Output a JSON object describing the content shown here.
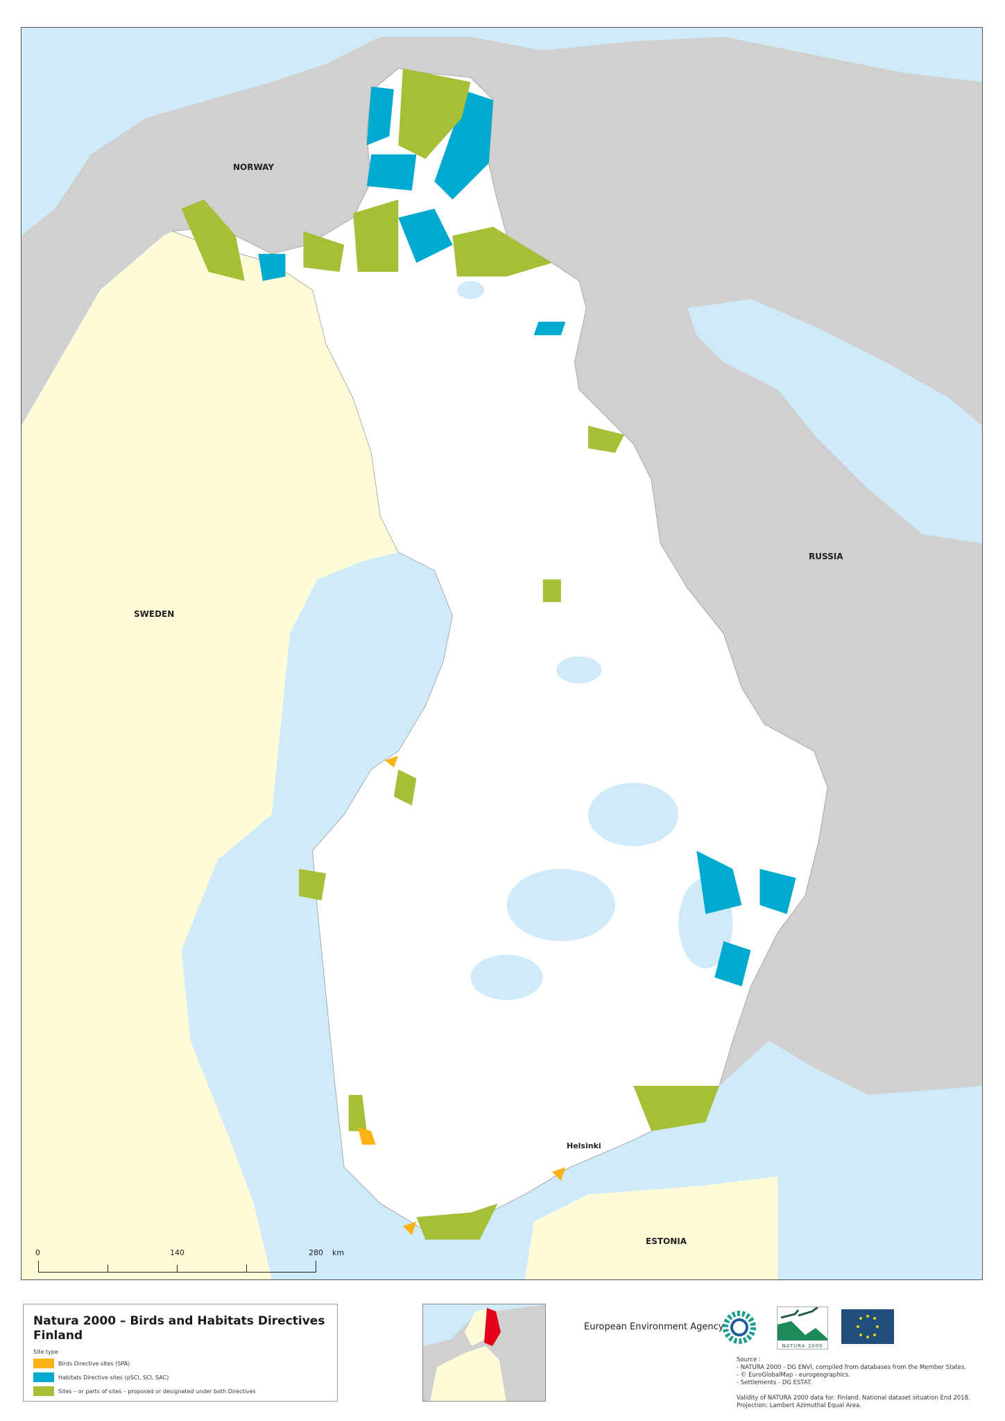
{
  "map": {
    "countries": {
      "norway": "NORWAY",
      "russia": "RUSSIA",
      "sweden": "SWEDEN",
      "estonia": "ESTONIA"
    },
    "cities": {
      "helsinki": "Helsinki"
    },
    "scale_bar": {
      "ticks": [
        "0",
        "140",
        "280"
      ],
      "unit": "km"
    },
    "colors": {
      "sea": "#cfeaf8",
      "other_land": "#d0d0d0",
      "neighbour_land": "#fefbd8",
      "finland": "#ffffff",
      "spa": "#fbb216",
      "sci": "#00a9ce",
      "both": "#a5bf37"
    }
  },
  "legend": {
    "title_line1": "Natura 2000 – Birds and Habitats Directives",
    "title_line2": "Finland",
    "subtitle": "Site type",
    "items": [
      {
        "label": "Birds Directive sites (SPA)",
        "color": "#fbb216"
      },
      {
        "label": "Habitats Directive sites (pSCI, SCI, SAC)",
        "color": "#00a9ce"
      },
      {
        "label": "Sites – or parts of sites – proposed or designated under both Directives",
        "color": "#a5bf37"
      }
    ]
  },
  "footer": {
    "agency": "European Environment Agency",
    "natura_logo": "NATURA 2000",
    "source_lines": [
      "Source :",
      "- NATURA 2000 - DG ENVI, compiled from databases from the Member States.",
      "- © EuroGlobalMap - eurogeographics.",
      "- Settlements - DG ESTAT.",
      "",
      "Validity of NATURA 2000 data for: Finland. National dataset situation End 2018.",
      "Projection: Lambert Azimuthal Equal Area."
    ]
  }
}
